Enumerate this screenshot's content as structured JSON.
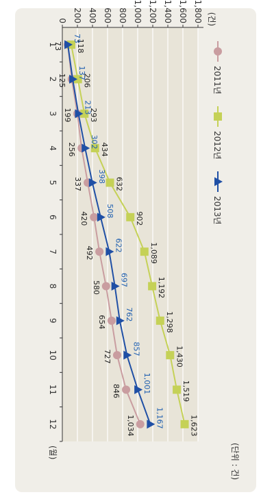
{
  "chart_data": {
    "type": "line",
    "orientation": "rotated 90 degrees clockwise",
    "unit_note": "(단위 : 건)",
    "xlabel": "(월)",
    "ylabel": "(건)",
    "categories": [
      "1",
      "2",
      "3",
      "4",
      "5",
      "6",
      "7",
      "8",
      "9",
      "10",
      "11",
      "12"
    ],
    "yticks": [
      "0",
      "200",
      "400",
      "600",
      "800",
      "1,000",
      "1,200",
      "1,400",
      "1,600",
      "1,800"
    ],
    "ylim": [
      0,
      1800
    ],
    "grid": true,
    "legend_position": "upper-left",
    "series": [
      {
        "name": "2011년",
        "color": "#c99da0",
        "marker": "circle",
        "values": [
          73,
          125,
          199,
          256,
          337,
          420,
          492,
          580,
          654,
          727,
          846,
          1034
        ],
        "labels": [
          "73",
          "125",
          "199",
          "256",
          "337",
          "420",
          "492",
          "580",
          "654",
          "727",
          "846",
          "1,034"
        ],
        "label_color": "#222222"
      },
      {
        "name": "2012년",
        "color": "#c5d157",
        "marker": "square",
        "values": [
          118,
          206,
          293,
          434,
          632,
          902,
          1089,
          1192,
          1298,
          1430,
          1519,
          1623
        ],
        "labels": [
          "118",
          "206",
          "293",
          "434",
          "632",
          "902",
          "1,089",
          "1,192",
          "1,298",
          "1,430",
          "1,519",
          "1,623"
        ],
        "label_color": "#222222"
      },
      {
        "name": "2013년",
        "color": "#1f4fa5",
        "marker": "triangle",
        "values": [
          73,
          137,
          213,
          302,
          398,
          508,
          622,
          697,
          762,
          857,
          1001,
          1167
        ],
        "labels": [
          "73",
          "137",
          "213",
          "302",
          "398",
          "508",
          "622",
          "697",
          "762",
          "857",
          "1,001",
          "1,167"
        ],
        "label_color": "#1f5fb0"
      }
    ],
    "colors": {
      "plot_background": "#e8e4d8",
      "panel_background": "#f0eee8",
      "gridline": "#ffffff",
      "axis": "#333333"
    }
  }
}
